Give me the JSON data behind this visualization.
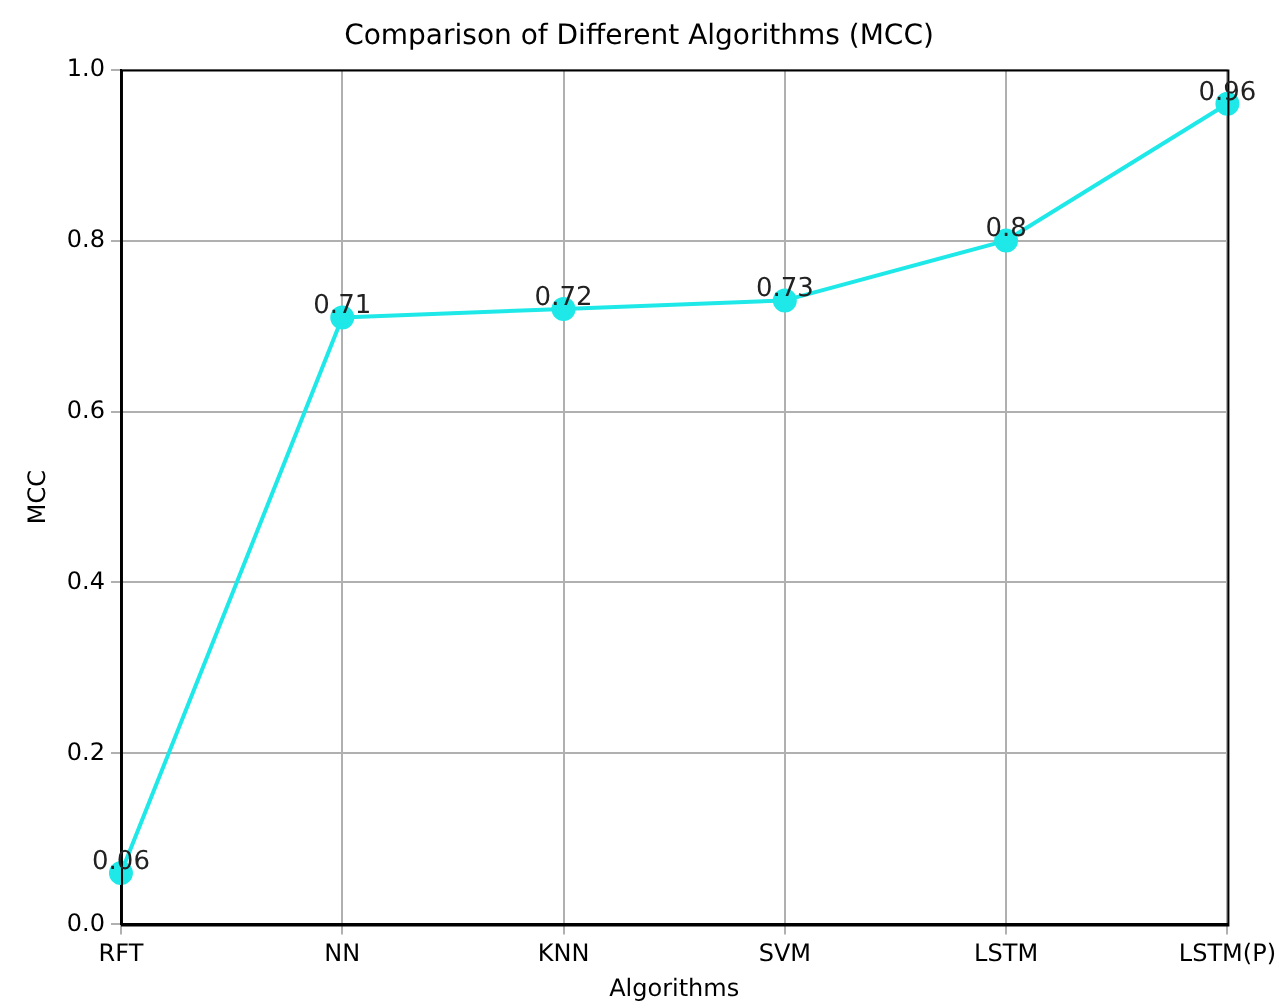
{
  "chart_data": {
    "type": "line",
    "title": "Comparison of Different Algorithms (MCC)",
    "xlabel": "Algorithms",
    "ylabel": "MCC",
    "categories": [
      "RFT",
      "NN",
      "KNN",
      "SVM",
      "LSTM",
      "LSTM(P)"
    ],
    "values": [
      0.06,
      0.71,
      0.72,
      0.73,
      0.8,
      0.96
    ],
    "color": "#1ee8e8",
    "marker": "circle",
    "line_style": "solid",
    "ylim": [
      0,
      1
    ],
    "yticks": [
      {
        "value": 0,
        "label": "0.0"
      },
      0.2,
      0.4,
      0.6,
      0.8,
      {
        "value": 1,
        "label": "1.0"
      }
    ],
    "grid": true,
    "data_labels": true
  }
}
